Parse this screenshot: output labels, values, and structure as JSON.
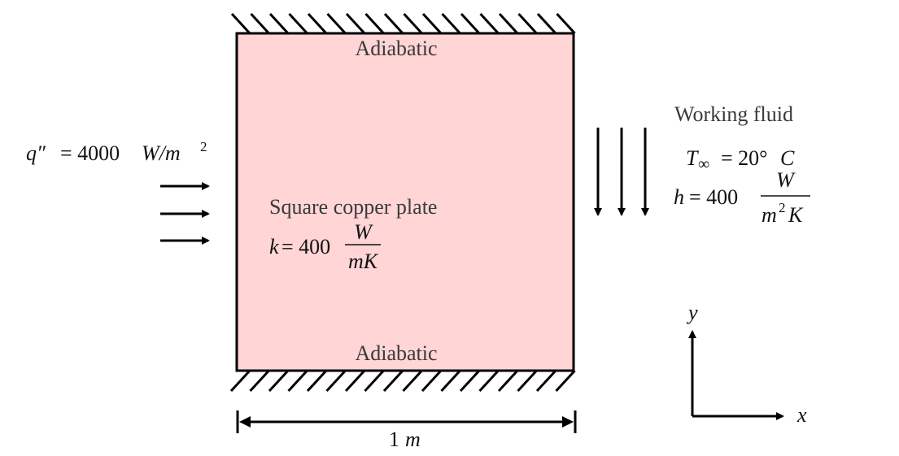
{
  "plate": {
    "fill_color": "#ffd5d6",
    "name": "Square copper plate",
    "k_lhs": "k",
    "k_value": "= 400",
    "k_num": "W",
    "k_den": "mK"
  },
  "boundaries": {
    "top_label": "Adiabatic",
    "bottom_label": "Adiabatic"
  },
  "heat_flux": {
    "symbol": "q″",
    "value": "= 4000",
    "unit": "W/m",
    "unit_exp": "2"
  },
  "fluid": {
    "title": "Working fluid",
    "t_sym": "T",
    "t_sub": "∞",
    "t_value": "= 20°",
    "t_unit": "C",
    "h_lhs": "h",
    "h_value": "= 400",
    "h_num": "W",
    "h_den_base": "m",
    "h_den_exp": "2",
    "h_den_tail": "K"
  },
  "dimension": {
    "value": "1",
    "unit": "m"
  },
  "axes": {
    "x_label": "x",
    "y_label": "y"
  }
}
